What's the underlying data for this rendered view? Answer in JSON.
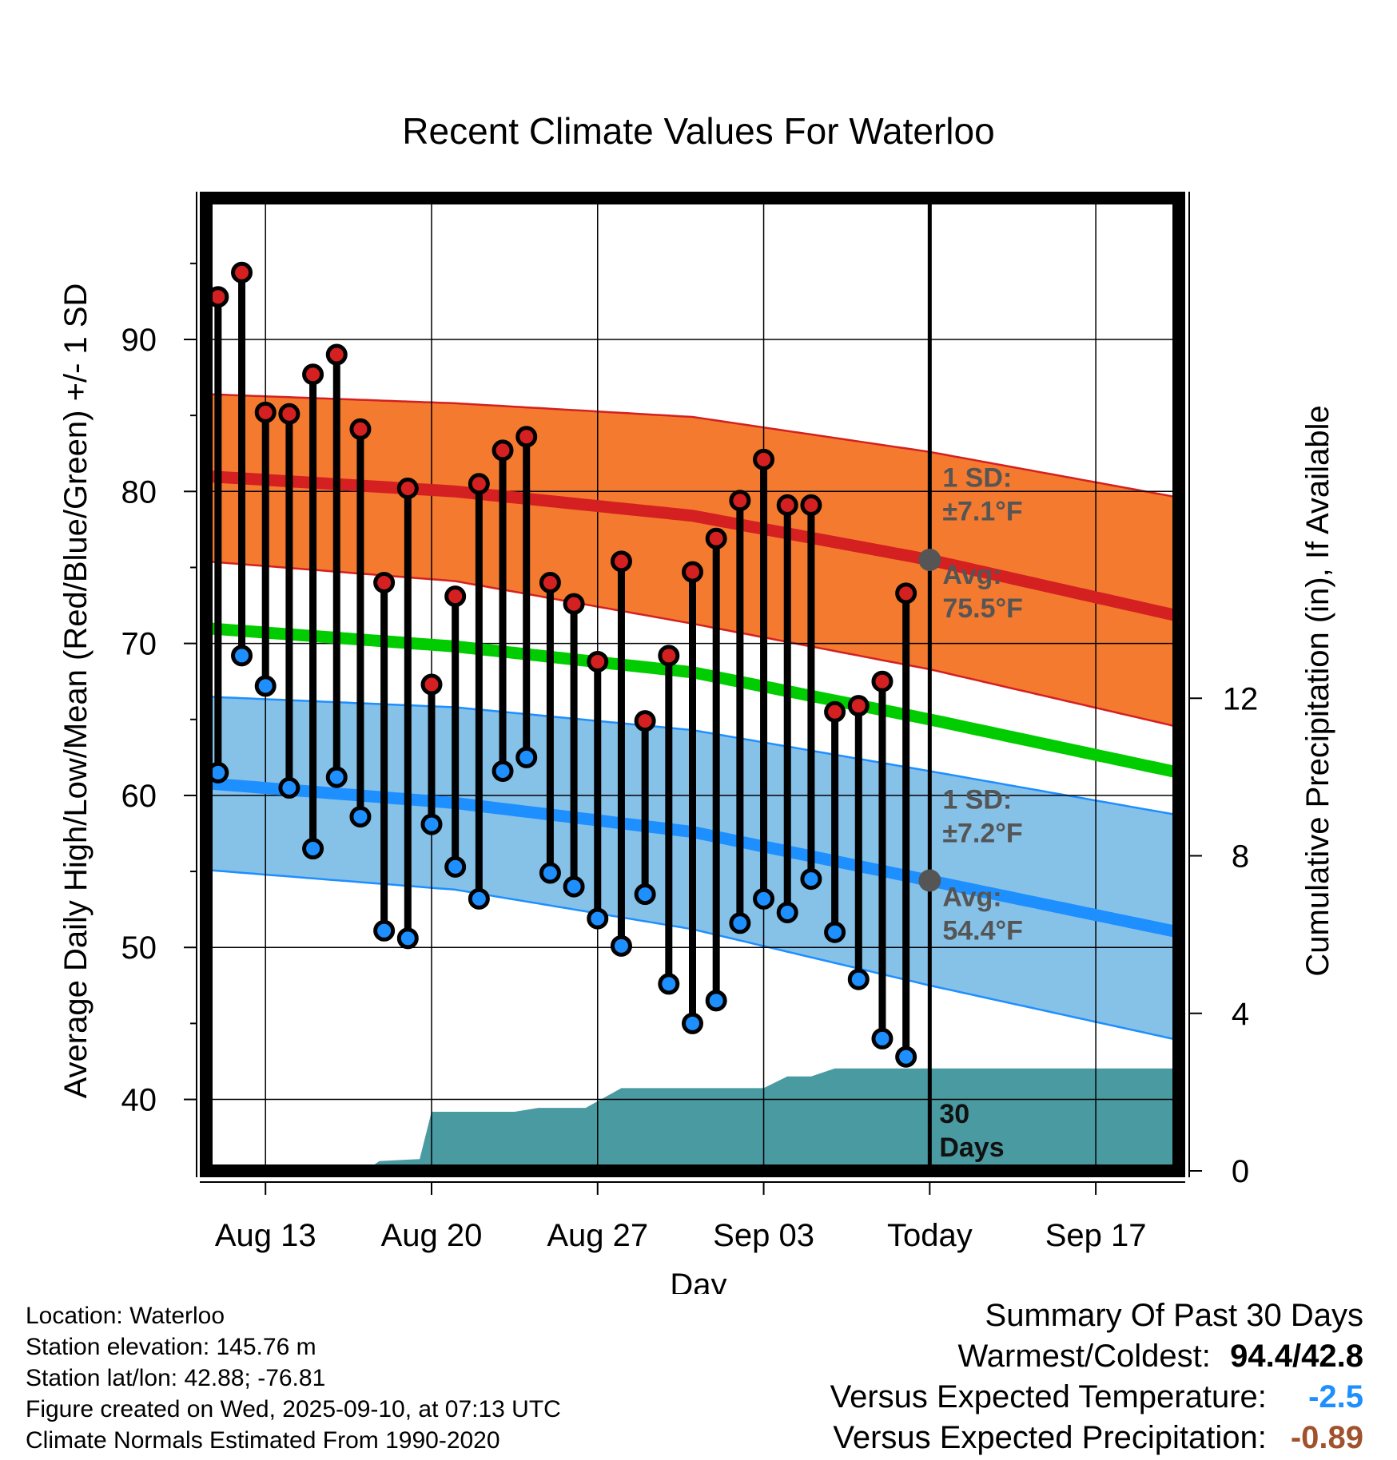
{
  "chart_data": {
    "type": "line",
    "title": "Recent Climate Values For Waterloo",
    "xlabel": "Day",
    "ylabel": "Average Daily High/Low/Mean (Red/Blue/Green) +/- 1 SD",
    "y2label": "Cumulative Precipitation (in), If Available",
    "ylim": [
      35.3,
      99.3
    ],
    "y2lim": [
      0,
      24.7
    ],
    "yticks": [
      40,
      50,
      60,
      70,
      80,
      90
    ],
    "y2ticks": [
      0,
      4,
      8,
      12
    ],
    "xlim": [
      -0.5,
      40.5
    ],
    "xticks": [
      {
        "day": 2,
        "label": "Aug 13"
      },
      {
        "day": 9,
        "label": "Aug 20"
      },
      {
        "day": 16,
        "label": "Aug 27"
      },
      {
        "day": 23,
        "label": "Sep 03"
      },
      {
        "day": 30,
        "label": "Today"
      },
      {
        "day": 37,
        "label": "Sep 17"
      }
    ],
    "start_date": "Aug 11",
    "today_day": 30,
    "normals": {
      "days": [
        -0.5,
        10,
        20,
        30,
        40.5
      ],
      "high_mean": [
        81.0,
        80.0,
        78.4,
        75.5,
        71.8
      ],
      "high_upper": [
        86.4,
        85.8,
        84.9,
        82.6,
        79.6
      ],
      "high_lower": [
        75.4,
        74.1,
        71.3,
        68.3,
        64.5
      ],
      "mean": [
        71.0,
        69.8,
        68.1,
        65.0,
        61.5
      ],
      "low_mean": [
        60.8,
        59.5,
        57.6,
        54.4,
        51.0
      ],
      "low_upper": [
        66.5,
        65.8,
        64.3,
        61.6,
        58.7
      ],
      "low_lower": [
        55.1,
        53.8,
        51.2,
        47.5,
        43.9
      ]
    },
    "series": [
      {
        "name": "High",
        "color": "#d42020",
        "values": [
          92.8,
          94.4,
          85.2,
          85.1,
          87.7,
          89.0,
          84.1,
          74.0,
          80.2,
          67.3,
          73.1,
          80.5,
          82.7,
          83.6,
          74.0,
          72.6,
          68.8,
          75.4,
          64.9,
          69.2,
          74.7,
          76.9,
          79.4,
          82.1,
          79.1,
          79.1,
          65.5,
          65.9,
          67.5,
          73.3
        ]
      },
      {
        "name": "Low",
        "color": "#1e8fff",
        "values": [
          61.5,
          69.2,
          67.2,
          60.5,
          56.5,
          61.2,
          58.6,
          51.1,
          50.6,
          58.1,
          55.3,
          53.2,
          61.6,
          62.5,
          54.9,
          54.0,
          51.9,
          50.1,
          53.5,
          47.6,
          45.0,
          46.5,
          51.6,
          53.2,
          52.3,
          54.5,
          51.0,
          47.9,
          44.0,
          42.8
        ]
      }
    ],
    "precip": {
      "days": [
        -0.5,
        6.2,
        6.8,
        8.5,
        9.0,
        12.5,
        13.5,
        15.0,
        15.5,
        17.0,
        17.5,
        23.0,
        24.0,
        25.0,
        26.0,
        40.5
      ],
      "values": [
        0,
        0,
        0.25,
        0.3,
        1.5,
        1.5,
        1.6,
        1.6,
        1.6,
        2.1,
        2.1,
        2.1,
        2.4,
        2.4,
        2.6,
        2.6
      ]
    },
    "annotations": {
      "high_sd_1": "1 SD:",
      "high_sd_2": "±7.1°F",
      "high_avg_1": "Avg:",
      "high_avg_2": "75.5°F",
      "low_sd_1": "1 SD:",
      "low_sd_2": "±7.2°F",
      "low_avg_1": "Avg:",
      "low_avg_2": "54.4°F",
      "days_1": "30",
      "days_2": "Days"
    }
  },
  "colors": {
    "high_band": "#f47a30",
    "high_line": "#d42020",
    "mean_line": "#00cc00",
    "low_band": "#86c1e8",
    "low_line": "#1e8fff",
    "precip": "#4a9aa2",
    "today_marker": "#555555"
  },
  "info": {
    "location": "Location: Waterloo",
    "elevation": "Station elevation: 145.76 m",
    "latlon": "Station lat/lon: 42.88; -76.81",
    "created": "Figure created on Wed, 2025-09-10, at 07:13 UTC",
    "normals": "Climate Normals Estimated From 1990-2020"
  },
  "summary": {
    "title": "Summary Of Past 30 Days",
    "warm_cold_label": "Warmest/Coldest:",
    "warm_cold_value": "94.4/42.8",
    "temp_label": "Versus Expected Temperature:",
    "temp_value": "-2.5",
    "temp_color": "#1e8fff",
    "precip_label": "Versus Expected Precipitation:",
    "precip_value": "-0.89",
    "precip_color": "#a0522d"
  }
}
